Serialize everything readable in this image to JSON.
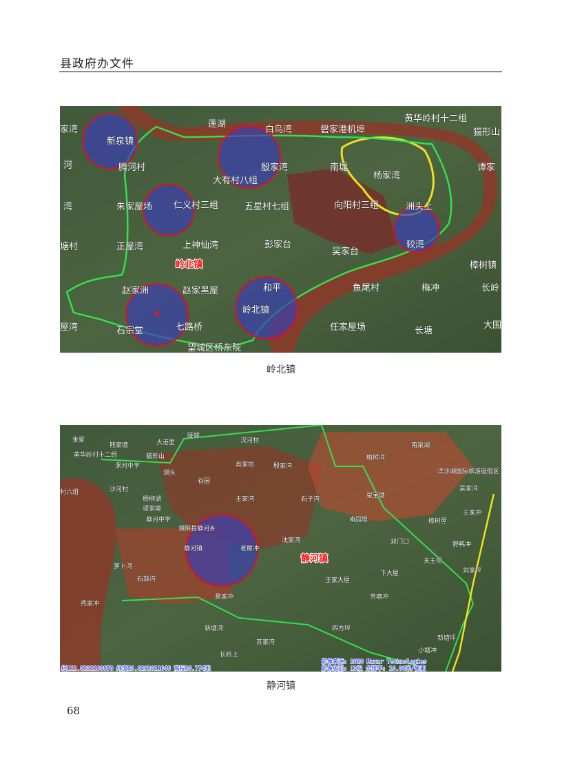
{
  "header": {
    "title": "县政府办文件"
  },
  "figures": [
    {
      "caption": "岭北镇",
      "labels": [
        "莲湖",
        "白鸟湾",
        "磐家港机埠",
        "黄华岭村十二组",
        "猫形山",
        "家湾",
        "新泉镇",
        "河",
        "腾河村",
        "殷家湾",
        "南堤",
        "杨家湾",
        "谭家",
        "大有村八组",
        "湾",
        "朱家屋场",
        "仁义村三组",
        "五星村七组",
        "向阳村三组",
        "洲头上",
        "塘村",
        "正屋湾",
        "上神仙湾",
        "彭家台",
        "吴家台",
        "较湾",
        "樟树镇",
        "岭北镇",
        "赵家洲",
        "赵家黑屋",
        "和平",
        "鱼尾村",
        "梅冲",
        "长岭",
        "岭北镇",
        "屋湾",
        "石宗堂",
        "七路桥",
        "任家屋场",
        "长塘",
        "大围",
        "望城区桥东院"
      ]
    },
    {
      "caption": "静河镇",
      "labels": [
        "金星",
        "熊家塘",
        "大港里",
        "陡坡",
        "汉河村",
        "黄华岭村十二组",
        "猫形山",
        "漯河中学",
        "湖头",
        "谷园",
        "肖家坊",
        "殷家湾",
        "南泉湖",
        "柏树湾",
        "村六组",
        "沙河村",
        "谭家坡",
        "杨柳湖",
        "王家湾",
        "石子湾",
        "泉宝塘",
        "洋沙湖国际旅游度假区",
        "吴家湾",
        "湘阴县静河乡",
        "静河中学",
        "南园坦",
        "樟树屋",
        "王家冲",
        "静河镇",
        "老屋冲",
        "沈家湾",
        "静河镇",
        "双门口",
        "野鸭冲",
        "萝卜湾",
        "下大屋",
        "刘家坪",
        "石鼓湾",
        "王家大屋",
        "关王坝",
        "易家冲",
        "芳塘冲",
        "新塘湾",
        "长岭上",
        "小塘冲",
        "新塘坪",
        "苏家湾",
        "四方坪",
        "燕家冲"
      ],
      "status_left": "经112.8232188878 纬度28.8292011646 高程26.774米",
      "status_right": "影像来源: 2020 Maxar Technologies",
      "status_right2": "影像级别: 13级 分辨率: 16.00米/像素"
    }
  ],
  "page_number": "68",
  "colors": {
    "river": "#8a3b2a",
    "zone": "#7a2a2a",
    "circle_fill": "#3a3fb0",
    "circle_stroke": "#e01020",
    "boundary": "#33e050",
    "yellow": "#f0e020"
  }
}
